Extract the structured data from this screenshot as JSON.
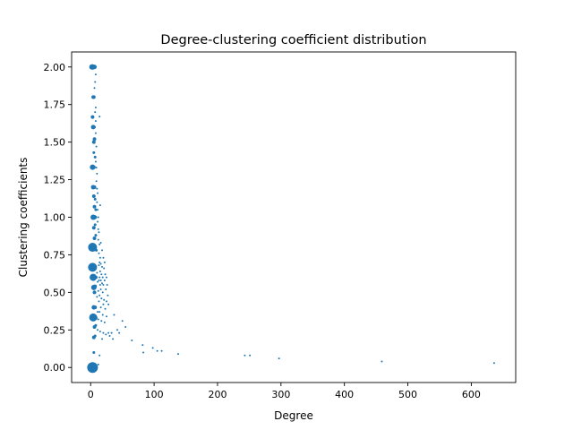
{
  "chart_data": {
    "type": "scatter",
    "title": "Degree-clustering coefficient distribution",
    "xlabel": "Degree",
    "ylabel": "Clustering coefficients",
    "xlim": [
      -30,
      670
    ],
    "ylim": [
      -0.1,
      2.1
    ],
    "xticks": [
      0,
      100,
      200,
      300,
      400,
      500,
      600
    ],
    "yticks": [
      0.0,
      0.25,
      0.5,
      0.75,
      1.0,
      1.25,
      1.5,
      1.75,
      2.0
    ],
    "xtick_labels": [
      "0",
      "100",
      "200",
      "300",
      "400",
      "500",
      "600"
    ],
    "ytick_labels": [
      "0.00",
      "0.25",
      "0.50",
      "0.75",
      "1.00",
      "1.25",
      "1.50",
      "1.75",
      "2.00"
    ],
    "grid": false,
    "legend": "none",
    "color": "#1f77b4",
    "points": [
      {
        "x": 2,
        "y": 2.0,
        "s": 3
      },
      {
        "x": 3,
        "y": 2.0,
        "s": 3
      },
      {
        "x": 4,
        "y": 2.0,
        "s": 2.5
      },
      {
        "x": 5,
        "y": 2.0,
        "s": 2.5
      },
      {
        "x": 6,
        "y": 2.0,
        "s": 2.5
      },
      {
        "x": 3,
        "y": 0.0,
        "s": 6
      },
      {
        "x": 5,
        "y": 0.0,
        "s": 2.5
      },
      {
        "x": 8,
        "y": 0.01,
        "s": 1.5
      },
      {
        "x": 12,
        "y": 0.02,
        "s": 1
      },
      {
        "x": 14,
        "y": 0.08,
        "s": 1
      },
      {
        "x": 3,
        "y": 0.8,
        "s": 5
      },
      {
        "x": 5,
        "y": 0.8,
        "s": 3
      },
      {
        "x": 7,
        "y": 0.8,
        "s": 2
      },
      {
        "x": 9,
        "y": 0.78,
        "s": 1.5
      },
      {
        "x": 3,
        "y": 0.667,
        "s": 5
      },
      {
        "x": 5,
        "y": 0.667,
        "s": 3
      },
      {
        "x": 7,
        "y": 0.67,
        "s": 2
      },
      {
        "x": 4,
        "y": 0.6,
        "s": 4
      },
      {
        "x": 6,
        "y": 0.6,
        "s": 2.5
      },
      {
        "x": 9,
        "y": 0.6,
        "s": 1.5
      },
      {
        "x": 4,
        "y": 0.333,
        "s": 4.5
      },
      {
        "x": 6,
        "y": 0.333,
        "s": 3
      },
      {
        "x": 8,
        "y": 0.33,
        "s": 2
      },
      {
        "x": 5,
        "y": 0.533,
        "s": 3
      },
      {
        "x": 7,
        "y": 0.54,
        "s": 2
      },
      {
        "x": 6,
        "y": 0.5,
        "s": 2
      },
      {
        "x": 4,
        "y": 1.0,
        "s": 3
      },
      {
        "x": 6,
        "y": 1.0,
        "s": 2.5
      },
      {
        "x": 8,
        "y": 1.0,
        "s": 1.5
      },
      {
        "x": 4,
        "y": 1.2,
        "s": 2.5
      },
      {
        "x": 6,
        "y": 1.2,
        "s": 2
      },
      {
        "x": 3,
        "y": 1.333,
        "s": 3
      },
      {
        "x": 5,
        "y": 1.333,
        "s": 2
      },
      {
        "x": 3,
        "y": 1.667,
        "s": 2
      },
      {
        "x": 4,
        "y": 1.6,
        "s": 2.5
      },
      {
        "x": 6,
        "y": 1.6,
        "s": 1.5
      },
      {
        "x": 4,
        "y": 1.8,
        "s": 2
      },
      {
        "x": 5,
        "y": 1.8,
        "s": 2
      },
      {
        "x": 5,
        "y": 1.5,
        "s": 2
      },
      {
        "x": 6,
        "y": 1.52,
        "s": 2
      },
      {
        "x": 5,
        "y": 1.43,
        "s": 1.5
      },
      {
        "x": 7,
        "y": 1.4,
        "s": 1.5
      },
      {
        "x": 5,
        "y": 1.14,
        "s": 2
      },
      {
        "x": 7,
        "y": 1.12,
        "s": 1.5
      },
      {
        "x": 6,
        "y": 1.07,
        "s": 2
      },
      {
        "x": 8,
        "y": 1.05,
        "s": 1.5
      },
      {
        "x": 5,
        "y": 0.93,
        "s": 2
      },
      {
        "x": 7,
        "y": 0.95,
        "s": 1.5
      },
      {
        "x": 6,
        "y": 0.86,
        "s": 2
      },
      {
        "x": 8,
        "y": 0.88,
        "s": 1.5
      },
      {
        "x": 5,
        "y": 0.4,
        "s": 2.5
      },
      {
        "x": 7,
        "y": 0.4,
        "s": 2
      },
      {
        "x": 6,
        "y": 0.27,
        "s": 2
      },
      {
        "x": 8,
        "y": 0.28,
        "s": 1.5
      },
      {
        "x": 5,
        "y": 0.2,
        "s": 2
      },
      {
        "x": 7,
        "y": 0.21,
        "s": 1.5
      },
      {
        "x": 5,
        "y": 0.1,
        "s": 1.5
      },
      {
        "x": 7,
        "y": 1.9,
        "s": 1
      },
      {
        "x": 8,
        "y": 1.95,
        "s": 1
      },
      {
        "x": 6,
        "y": 1.86,
        "s": 1
      },
      {
        "x": 7,
        "y": 1.7,
        "s": 1
      },
      {
        "x": 8,
        "y": 1.73,
        "s": 1
      },
      {
        "x": 8,
        "y": 1.64,
        "s": 1
      },
      {
        "x": 8,
        "y": 1.56,
        "s": 1
      },
      {
        "x": 9,
        "y": 1.47,
        "s": 1
      },
      {
        "x": 8,
        "y": 1.37,
        "s": 1
      },
      {
        "x": 9,
        "y": 1.33,
        "s": 1
      },
      {
        "x": 10,
        "y": 1.29,
        "s": 1
      },
      {
        "x": 9,
        "y": 1.24,
        "s": 1
      },
      {
        "x": 10,
        "y": 1.19,
        "s": 1
      },
      {
        "x": 11,
        "y": 1.16,
        "s": 1
      },
      {
        "x": 10,
        "y": 1.1,
        "s": 1
      },
      {
        "x": 11,
        "y": 1.05,
        "s": 1
      },
      {
        "x": 12,
        "y": 1.0,
        "s": 1
      },
      {
        "x": 11,
        "y": 0.97,
        "s": 1
      },
      {
        "x": 12,
        "y": 0.92,
        "s": 1
      },
      {
        "x": 13,
        "y": 0.9,
        "s": 1
      },
      {
        "x": 12,
        "y": 0.85,
        "s": 1
      },
      {
        "x": 14,
        "y": 0.82,
        "s": 1
      },
      {
        "x": 13,
        "y": 0.76,
        "s": 1
      },
      {
        "x": 15,
        "y": 0.73,
        "s": 1
      },
      {
        "x": 14,
        "y": 0.7,
        "s": 1
      },
      {
        "x": 16,
        "y": 0.69,
        "s": 1
      },
      {
        "x": 18,
        "y": 0.67,
        "s": 1
      },
      {
        "x": 15,
        "y": 0.64,
        "s": 1
      },
      {
        "x": 17,
        "y": 0.62,
        "s": 1
      },
      {
        "x": 19,
        "y": 0.6,
        "s": 1
      },
      {
        "x": 16,
        "y": 0.58,
        "s": 1
      },
      {
        "x": 18,
        "y": 0.56,
        "s": 1
      },
      {
        "x": 20,
        "y": 0.55,
        "s": 1
      },
      {
        "x": 16,
        "y": 0.52,
        "s": 1
      },
      {
        "x": 19,
        "y": 0.5,
        "s": 1
      },
      {
        "x": 14,
        "y": 0.48,
        "s": 1
      },
      {
        "x": 17,
        "y": 0.46,
        "s": 1
      },
      {
        "x": 21,
        "y": 0.45,
        "s": 1
      },
      {
        "x": 13,
        "y": 0.44,
        "s": 1
      },
      {
        "x": 20,
        "y": 0.42,
        "s": 1
      },
      {
        "x": 16,
        "y": 0.4,
        "s": 1
      },
      {
        "x": 23,
        "y": 0.39,
        "s": 1
      },
      {
        "x": 14,
        "y": 0.37,
        "s": 1
      },
      {
        "x": 19,
        "y": 0.35,
        "s": 1
      },
      {
        "x": 25,
        "y": 0.34,
        "s": 1
      },
      {
        "x": 12,
        "y": 0.32,
        "s": 1
      },
      {
        "x": 17,
        "y": 0.31,
        "s": 1
      },
      {
        "x": 22,
        "y": 0.3,
        "s": 1
      },
      {
        "x": 11,
        "y": 0.25,
        "s": 1
      },
      {
        "x": 15,
        "y": 0.24,
        "s": 1
      },
      {
        "x": 20,
        "y": 0.23,
        "s": 1
      },
      {
        "x": 24,
        "y": 0.22,
        "s": 1
      },
      {
        "x": 28,
        "y": 0.23,
        "s": 1
      },
      {
        "x": 18,
        "y": 0.19,
        "s": 1
      },
      {
        "x": 14,
        "y": 1.67,
        "s": 1
      },
      {
        "x": 15,
        "y": 1.08,
        "s": 1
      },
      {
        "x": 16,
        "y": 0.83,
        "s": 1
      },
      {
        "x": 18,
        "y": 0.78,
        "s": 1
      },
      {
        "x": 20,
        "y": 0.73,
        "s": 1
      },
      {
        "x": 22,
        "y": 0.7,
        "s": 1
      },
      {
        "x": 21,
        "y": 0.66,
        "s": 1
      },
      {
        "x": 23,
        "y": 0.62,
        "s": 1
      },
      {
        "x": 25,
        "y": 0.6,
        "s": 1
      },
      {
        "x": 22,
        "y": 0.58,
        "s": 1
      },
      {
        "x": 26,
        "y": 0.55,
        "s": 1
      },
      {
        "x": 24,
        "y": 0.52,
        "s": 1
      },
      {
        "x": 27,
        "y": 0.48,
        "s": 1
      },
      {
        "x": 25,
        "y": 0.44,
        "s": 1
      },
      {
        "x": 28,
        "y": 0.42,
        "s": 1
      },
      {
        "x": 10,
        "y": 0.63,
        "s": 1
      },
      {
        "x": 11,
        "y": 0.57,
        "s": 1
      },
      {
        "x": 12,
        "y": 0.51,
        "s": 1
      },
      {
        "x": 10,
        "y": 0.47,
        "s": 1
      },
      {
        "x": 11,
        "y": 0.37,
        "s": 1
      },
      {
        "x": 13,
        "y": 0.58,
        "s": 1
      },
      {
        "x": 15,
        "y": 0.55,
        "s": 1
      },
      {
        "x": 14,
        "y": 0.6,
        "s": 1
      },
      {
        "x": 13,
        "y": 0.68,
        "s": 1
      },
      {
        "x": 30,
        "y": 0.21,
        "s": 1
      },
      {
        "x": 33,
        "y": 0.23,
        "s": 1
      },
      {
        "x": 35,
        "y": 0.19,
        "s": 1
      },
      {
        "x": 37,
        "y": 0.35,
        "s": 1
      },
      {
        "x": 42,
        "y": 0.25,
        "s": 1
      },
      {
        "x": 45,
        "y": 0.23,
        "s": 1
      },
      {
        "x": 50,
        "y": 0.31,
        "s": 1
      },
      {
        "x": 55,
        "y": 0.27,
        "s": 1
      },
      {
        "x": 65,
        "y": 0.18,
        "s": 1
      },
      {
        "x": 82,
        "y": 0.15,
        "s": 1
      },
      {
        "x": 83,
        "y": 0.1,
        "s": 1
      },
      {
        "x": 98,
        "y": 0.13,
        "s": 1
      },
      {
        "x": 105,
        "y": 0.11,
        "s": 1
      },
      {
        "x": 112,
        "y": 0.11,
        "s": 1
      },
      {
        "x": 138,
        "y": 0.09,
        "s": 1
      },
      {
        "x": 243,
        "y": 0.08,
        "s": 1
      },
      {
        "x": 251,
        "y": 0.08,
        "s": 1
      },
      {
        "x": 297,
        "y": 0.06,
        "s": 1
      },
      {
        "x": 459,
        "y": 0.04,
        "s": 1
      },
      {
        "x": 636,
        "y": 0.03,
        "s": 1
      }
    ]
  }
}
